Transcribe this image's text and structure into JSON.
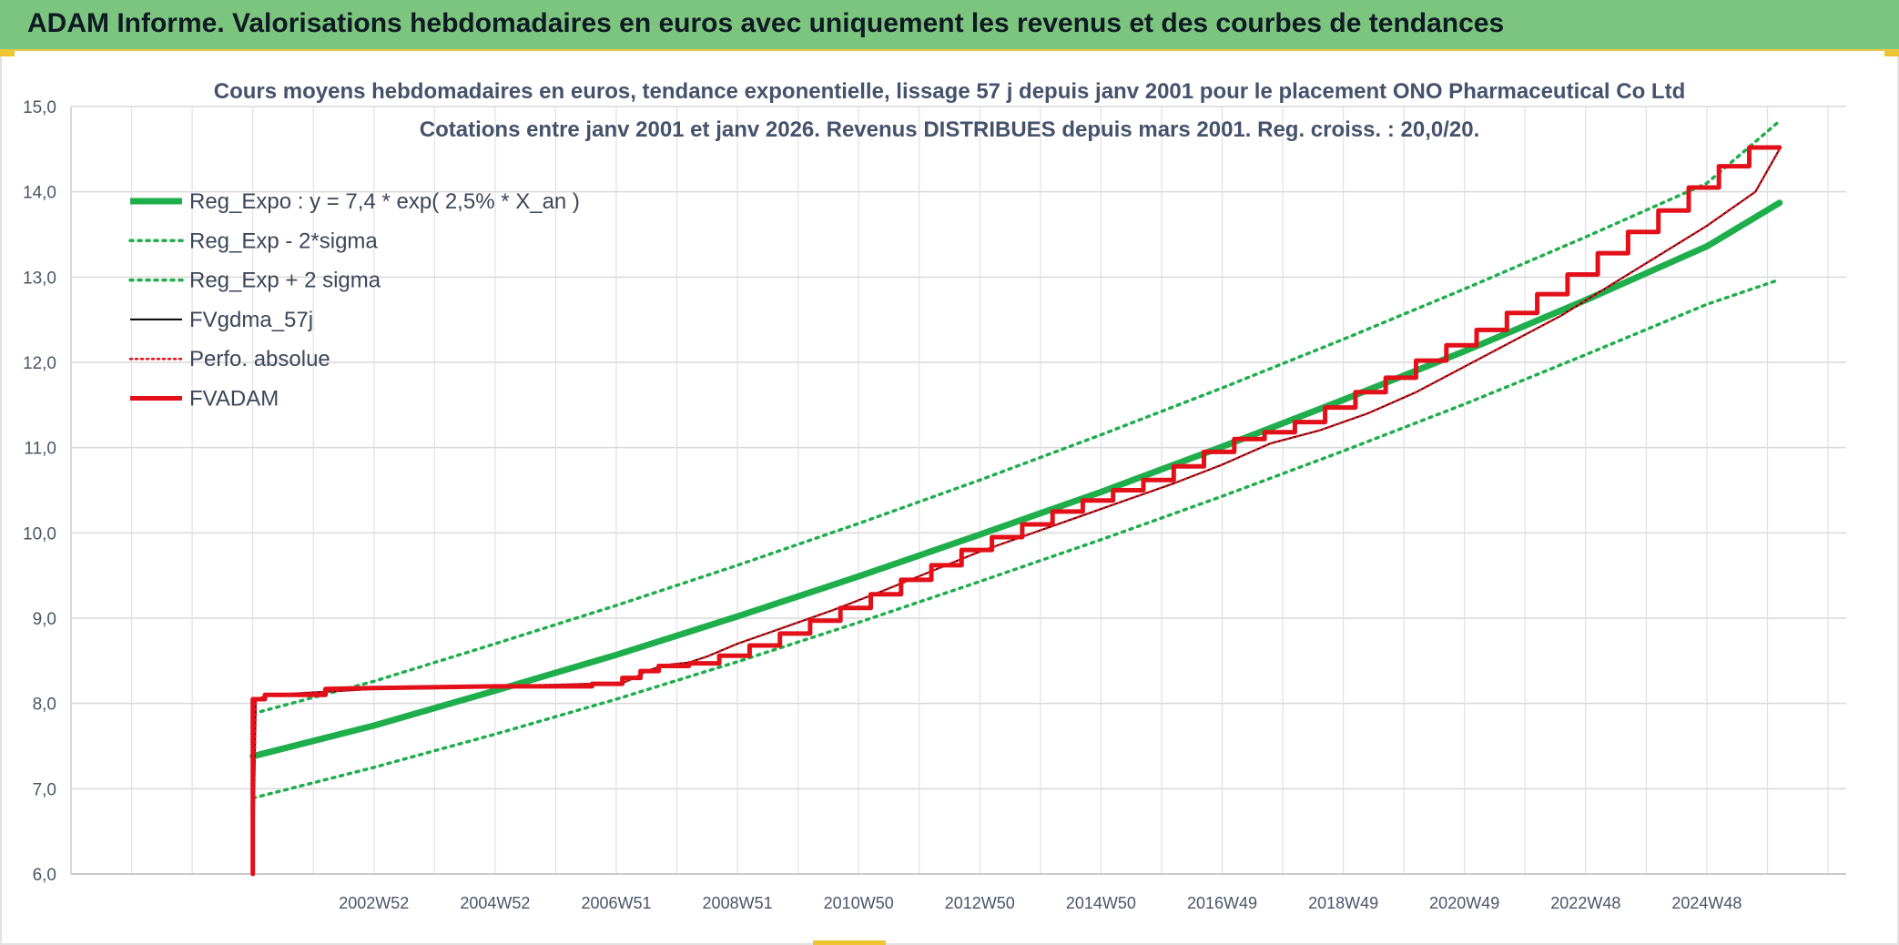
{
  "header": {
    "title": "ADAM Informe. Valorisations hebdomadaires en euros avec uniquement les revenus et des courbes de tendances"
  },
  "colors": {
    "banner": "#7cc57e",
    "reg_green": "#1fae4c",
    "fvadam_red": "#e3101a",
    "fvgdma_black": "#000000",
    "title_text": "#45526b"
  },
  "chart_data": {
    "type": "line",
    "title": "Cours moyens hebdomadaires en euros, tendance exponentielle, lissage 57 j depuis janv 2001 pour le placement ONO Pharmaceutical Co Ltd",
    "subtitle": "Cotations entre janv 2001 et janv 2026. Revenus DISTRIBUES depuis mars 2001. Reg. croiss. : 20,0/20.",
    "xlabel": "",
    "ylabel": "",
    "ylim": [
      6.0,
      15.0
    ],
    "xlim": [
      -3,
      26.3
    ],
    "grid": true,
    "legend_position": "top-left",
    "yticks": [
      "6,0",
      "7,0",
      "8,0",
      "9,0",
      "10,0",
      "11,0",
      "12,0",
      "13,0",
      "14,0",
      "15,0"
    ],
    "xticks": [
      {
        "x": 2,
        "label": "2002W52"
      },
      {
        "x": 4,
        "label": "2004W52"
      },
      {
        "x": 6,
        "label": "2006W51"
      },
      {
        "x": 8,
        "label": "2008W51"
      },
      {
        "x": 10,
        "label": "2010W50"
      },
      {
        "x": 12,
        "label": "2012W50"
      },
      {
        "x": 14,
        "label": "2014W50"
      },
      {
        "x": 16,
        "label": "2016W49"
      },
      {
        "x": 18,
        "label": "2018W49"
      },
      {
        "x": 20,
        "label": "2020W49"
      },
      {
        "x": 22,
        "label": "2022W48"
      },
      {
        "x": 24,
        "label": "2024W48"
      }
    ],
    "series": [
      {
        "name": "Reg_Expo : y = 7,4 * exp( 2,5% *  X_an )",
        "style": "solid-thick-green",
        "x": [
          0,
          2,
          4,
          6,
          8,
          10,
          12,
          14,
          16,
          18,
          20,
          22,
          24,
          25.2
        ],
        "values": [
          7.38,
          7.74,
          8.15,
          8.57,
          9.02,
          9.49,
          9.98,
          10.48,
          11.01,
          11.56,
          12.13,
          12.73,
          13.36,
          13.87
        ]
      },
      {
        "name": "Reg_Exp - 2*sigma",
        "style": "dotted-green",
        "x": [
          0,
          2,
          4,
          6,
          8,
          10,
          12,
          14,
          16,
          18,
          20,
          22,
          24,
          25.2
        ],
        "values": [
          6.89,
          7.25,
          7.64,
          8.05,
          8.49,
          8.95,
          9.43,
          9.92,
          10.43,
          10.96,
          11.51,
          12.09,
          12.68,
          12.97
        ]
      },
      {
        "name": "Reg_Exp + 2 sigma",
        "style": "dotted-green",
        "x": [
          0,
          2,
          4,
          6,
          8,
          10,
          12,
          14,
          16,
          18,
          20,
          22,
          24,
          25.2
        ],
        "values": [
          7.88,
          8.26,
          8.7,
          9.15,
          9.62,
          10.11,
          10.62,
          11.15,
          11.7,
          12.27,
          12.86,
          13.47,
          14.1,
          14.83
        ]
      },
      {
        "name": "FVgdma_57j",
        "style": "solid-thin-black",
        "x": [
          0,
          0.05,
          0.3,
          2,
          4,
          6.1,
          6.3,
          6.5,
          6.8,
          7.2,
          7.5,
          8,
          8.8,
          9.6,
          10.4,
          11.2,
          12,
          12.8,
          13.6,
          14.4,
          15.2,
          16,
          16.8,
          17.6,
          18.4,
          19.2,
          20,
          20.8,
          21.6,
          22.4,
          23.2,
          24,
          24.8,
          25.2
        ],
        "values": [
          6.0,
          8.05,
          8.1,
          8.17,
          8.2,
          8.24,
          8.3,
          8.38,
          8.45,
          8.48,
          8.55,
          8.7,
          8.9,
          9.1,
          9.32,
          9.55,
          9.78,
          9.98,
          10.18,
          10.38,
          10.58,
          10.8,
          11.05,
          11.2,
          11.4,
          11.65,
          11.95,
          12.25,
          12.55,
          12.9,
          13.25,
          13.6,
          14.0,
          14.5
        ]
      },
      {
        "name": "Perfo. absolue",
        "style": "dotted-red",
        "x": [
          0,
          0.05,
          0.3,
          2,
          4,
          6.1,
          6.3,
          6.5,
          6.8,
          7.2,
          7.5,
          8,
          8.8,
          9.6,
          10.4,
          11.2,
          12,
          12.8,
          13.6,
          14.4,
          15.2,
          16,
          16.8,
          17.6,
          18.4,
          19.2,
          20,
          20.8,
          21.6,
          22.4,
          23.2,
          24,
          24.8,
          25.2
        ],
        "values": [
          6.0,
          8.05,
          8.1,
          8.17,
          8.2,
          8.24,
          8.3,
          8.38,
          8.45,
          8.48,
          8.55,
          8.7,
          8.9,
          9.1,
          9.32,
          9.55,
          9.78,
          9.98,
          10.18,
          10.38,
          10.58,
          10.8,
          11.05,
          11.2,
          11.4,
          11.65,
          11.95,
          12.25,
          12.55,
          12.9,
          13.25,
          13.6,
          14.0,
          14.5
        ]
      },
      {
        "name": "FVADAM",
        "style": "solid-thick-red",
        "x": [
          0,
          0,
          0.2,
          0.2,
          1.2,
          1.2,
          2,
          4,
          5.6,
          5.6,
          6.1,
          6.1,
          6.4,
          6.4,
          6.7,
          6.7,
          7.2,
          7.2,
          7.7,
          7.7,
          8.2,
          8.2,
          8.7,
          8.7,
          9.2,
          9.2,
          9.7,
          9.7,
          10.2,
          10.2,
          10.7,
          10.7,
          11.2,
          11.2,
          11.7,
          11.7,
          12.2,
          12.2,
          12.7,
          12.7,
          13.2,
          13.2,
          13.7,
          13.7,
          14.2,
          14.2,
          14.7,
          14.7,
          15.2,
          15.2,
          15.7,
          15.7,
          16.2,
          16.2,
          16.7,
          16.7,
          17.2,
          17.2,
          17.7,
          17.7,
          18.2,
          18.2,
          18.7,
          18.7,
          19.2,
          19.2,
          19.7,
          19.7,
          20.2,
          20.2,
          20.7,
          20.7,
          21.2,
          21.2,
          21.7,
          21.7,
          22.2,
          22.2,
          22.7,
          22.7,
          23.2,
          23.2,
          23.7,
          23.7,
          24.2,
          24.2,
          24.7,
          24.7,
          25.2
        ],
        "values": [
          6.0,
          8.05,
          8.05,
          8.1,
          8.1,
          8.17,
          8.18,
          8.2,
          8.2,
          8.23,
          8.23,
          8.3,
          8.3,
          8.38,
          8.38,
          8.44,
          8.44,
          8.47,
          8.47,
          8.56,
          8.56,
          8.68,
          8.68,
          8.82,
          8.82,
          8.97,
          8.97,
          9.12,
          9.12,
          9.28,
          9.28,
          9.45,
          9.45,
          9.62,
          9.62,
          9.8,
          9.8,
          9.95,
          9.95,
          10.1,
          10.1,
          10.25,
          10.25,
          10.38,
          10.38,
          10.5,
          10.5,
          10.62,
          10.62,
          10.78,
          10.78,
          10.95,
          10.95,
          11.1,
          11.1,
          11.18,
          11.18,
          11.3,
          11.3,
          11.47,
          11.47,
          11.65,
          11.65,
          11.82,
          11.82,
          12.02,
          12.02,
          12.2,
          12.2,
          12.38,
          12.38,
          12.58,
          12.58,
          12.8,
          12.8,
          13.03,
          13.03,
          13.28,
          13.28,
          13.53,
          13.53,
          13.78,
          13.78,
          14.05,
          14.05,
          14.3,
          14.3,
          14.52,
          14.52
        ]
      }
    ]
  }
}
